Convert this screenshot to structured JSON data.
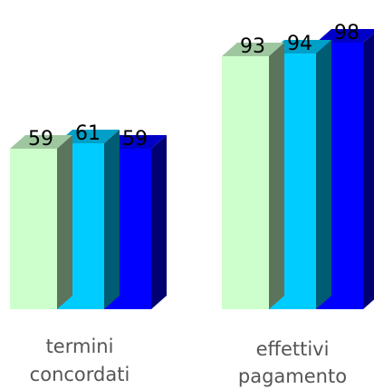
{
  "chart_data": {
    "type": "bar",
    "categories": [
      [
        "termini",
        "concordati"
      ],
      [
        "effettivi",
        "pagamento"
      ]
    ],
    "series": [
      {
        "values": [
          59,
          93
        ],
        "color": "#ccffcc"
      },
      {
        "values": [
          61,
          94
        ],
        "color": "#00ccff"
      },
      {
        "values": [
          59,
          98
        ],
        "color": "#0000ff"
      }
    ],
    "ylim": [
      0,
      100
    ],
    "grid": false,
    "legend": "none",
    "style": "3d-columns"
  }
}
